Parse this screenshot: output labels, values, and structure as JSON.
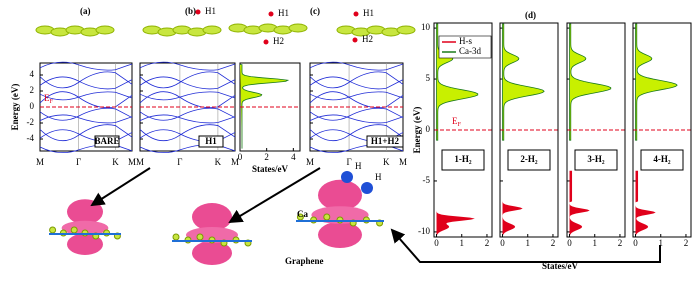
{
  "panel_labels": [
    "(a)",
    "(b)",
    "(c)",
    "(d)"
  ],
  "adsorbate_labels": [
    "H1",
    "H1",
    "H2",
    "H1",
    "H2"
  ],
  "bands": {
    "ylabel": "Energy (eV)",
    "ylim": [
      -5.5,
      5.5
    ],
    "yticks": [
      -4,
      -2,
      0,
      2,
      4
    ],
    "kpoints": [
      "M",
      "Γ",
      "K",
      "M"
    ],
    "fermi_level": 0,
    "fermi_label": {
      "main": "E",
      "sub": "F"
    },
    "panels": [
      "BARE",
      "H1",
      "H1+H2"
    ],
    "dos_xlim": [
      0,
      4.5
    ],
    "dos_xticks": [
      0,
      2,
      4
    ],
    "dos_xlabel": "States/eV"
  },
  "dos": {
    "ylabel": "Energy (eV)",
    "xlabel": "States/eV",
    "ylim": [
      -10.5,
      10.5
    ],
    "yticks": [
      -10,
      -5,
      0,
      5,
      10
    ],
    "xlim": [
      -0.1,
      2.2
    ],
    "xticks": [
      0,
      1,
      2
    ],
    "fermi_level": 0,
    "fermi_label": {
      "main": "E",
      "sub": "F"
    },
    "legend": [
      {
        "name": "H-s",
        "color": "#e0001b"
      },
      {
        "name": "Ca-3d",
        "color": "#1a7a1a"
      }
    ],
    "panels": [
      "1-H₂",
      "2-H₂",
      "3-H₂",
      "4-H₂"
    ]
  },
  "structure_labels": [
    "H",
    "H",
    "Ca",
    "Graphene"
  ]
}
